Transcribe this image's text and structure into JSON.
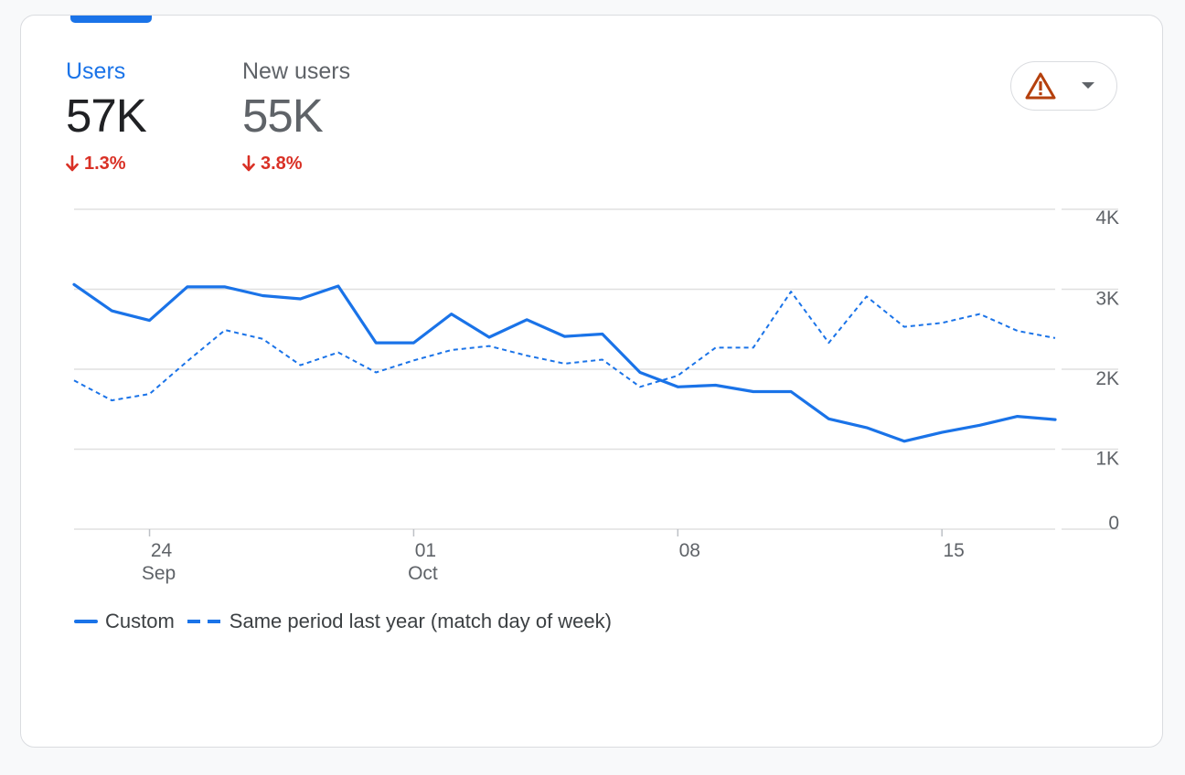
{
  "metrics": [
    {
      "label": "Users",
      "value": "57K",
      "change": "1.3%",
      "direction": "down",
      "active": true
    },
    {
      "label": "New users",
      "value": "55K",
      "change": "3.8%",
      "direction": "down",
      "active": false
    }
  ],
  "alert_button": {
    "icon": "warning-icon",
    "menu_icon": "dropdown-arrow-icon",
    "icon_color": "#b5400d"
  },
  "colors": {
    "accent": "#1a73e8",
    "negative": "#d93025",
    "grid": "#e0e0e0",
    "axis_text": "#5f6368"
  },
  "chart_data": {
    "type": "line",
    "x_tick_labels": [
      {
        "day": "24",
        "month": "Sep"
      },
      {
        "day": "01",
        "month": "Oct"
      },
      {
        "day": "08",
        "month": ""
      },
      {
        "day": "15",
        "month": ""
      }
    ],
    "y_tick_labels": [
      "4K",
      "3K",
      "2K",
      "1K",
      "0"
    ],
    "ylim": [
      0,
      4000
    ],
    "grid": true,
    "legend_position": "bottom-left",
    "x": [
      "Sep 22",
      "Sep 23",
      "Sep 24",
      "Sep 25",
      "Sep 26",
      "Sep 27",
      "Sep 28",
      "Sep 29",
      "Sep 30",
      "Oct 01",
      "Oct 02",
      "Oct 03",
      "Oct 04",
      "Oct 05",
      "Oct 06",
      "Oct 07",
      "Oct 08",
      "Oct 09",
      "Oct 10",
      "Oct 11",
      "Oct 12",
      "Oct 13",
      "Oct 14",
      "Oct 15",
      "Oct 16",
      "Oct 17",
      "Oct 18"
    ],
    "series": [
      {
        "name": "Custom",
        "style": "solid",
        "values": [
          3060,
          2730,
          2610,
          3030,
          3030,
          2920,
          2880,
          3040,
          2330,
          2330,
          2690,
          2400,
          2620,
          2410,
          2440,
          1960,
          1780,
          1800,
          1720,
          1720,
          1380,
          1270,
          1100,
          1210,
          1300,
          1410,
          1370
        ]
      },
      {
        "name": "Same period last year (match day of week)",
        "style": "dashed",
        "values": [
          1860,
          1610,
          1690,
          2100,
          2490,
          2380,
          2050,
          2210,
          1960,
          2110,
          2240,
          2290,
          2170,
          2070,
          2120,
          1780,
          1920,
          2270,
          2270,
          2970,
          2330,
          2910,
          2530,
          2580,
          2690,
          2480,
          2390
        ]
      }
    ]
  }
}
